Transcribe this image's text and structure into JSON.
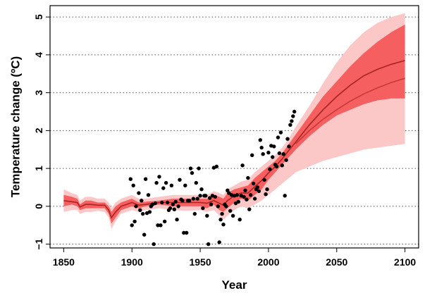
{
  "chart_data": {
    "type": "line",
    "title": "",
    "xlabel": "Year",
    "ylabel": "Temperature change (ºC)",
    "xlim": [
      1840,
      2110
    ],
    "ylim": [
      -1.1,
      5.3
    ],
    "x_ticks": [
      1850,
      1900,
      1950,
      2000,
      2050,
      2100
    ],
    "y_ticks": [
      -1,
      0,
      1,
      2,
      3,
      4,
      5
    ],
    "grid": "horizontal-dotted",
    "legend": "none",
    "colors": {
      "outer_band": "#fcc7c7",
      "inner_band": "#f55f5f",
      "line_upper": "#a82424",
      "line_lower": "#c83a3a",
      "points": "#000000"
    },
    "bands": {
      "x": [
        1850,
        1856,
        1860,
        1862,
        1866,
        1870,
        1875,
        1880,
        1883,
        1885,
        1888,
        1892,
        1896,
        1900,
        1905,
        1910,
        1920,
        1930,
        1940,
        1950,
        1955,
        1960,
        1964,
        1967,
        1970,
        1975,
        1980,
        1985,
        1990,
        1995,
        2000,
        2005,
        2010,
        2015,
        2020,
        2030,
        2040,
        2050,
        2060,
        2070,
        2080,
        2090,
        2100
      ],
      "outer_low": [
        -0.15,
        -0.1,
        -0.1,
        -0.2,
        -0.15,
        -0.15,
        -0.12,
        -0.15,
        -0.3,
        -0.6,
        -0.4,
        -0.2,
        -0.15,
        -0.1,
        -0.15,
        -0.1,
        -0.05,
        -0.1,
        -0.12,
        -0.1,
        -0.15,
        -0.1,
        -0.25,
        -0.35,
        -0.25,
        -0.1,
        0.0,
        -0.05,
        0.05,
        0.15,
        0.3,
        0.45,
        0.6,
        0.75,
        0.9,
        1.05,
        1.2,
        1.3,
        1.4,
        1.5,
        1.55,
        1.6,
        1.65
      ],
      "outer_high": [
        0.45,
        0.35,
        0.3,
        0.15,
        0.25,
        0.25,
        0.2,
        0.2,
        0.1,
        -0.05,
        0.1,
        0.2,
        0.25,
        0.3,
        0.2,
        0.2,
        0.25,
        0.3,
        0.3,
        0.3,
        0.3,
        0.4,
        0.35,
        0.3,
        0.45,
        0.55,
        0.65,
        0.7,
        0.9,
        1.05,
        1.2,
        1.35,
        1.55,
        1.8,
        2.1,
        2.65,
        3.25,
        3.8,
        4.25,
        4.6,
        4.85,
        5.0,
        5.1
      ],
      "inner_low": [
        0.0,
        0.05,
        0.0,
        -0.1,
        -0.05,
        -0.05,
        -0.05,
        -0.05,
        -0.2,
        -0.45,
        -0.3,
        -0.1,
        -0.05,
        0.0,
        -0.05,
        0.0,
        0.05,
        0.0,
        0.0,
        0.0,
        -0.05,
        0.05,
        -0.1,
        -0.15,
        -0.05,
        0.1,
        0.2,
        0.15,
        0.3,
        0.45,
        0.7,
        0.9,
        1.1,
        1.3,
        1.5,
        1.85,
        2.15,
        2.4,
        2.55,
        2.7,
        2.8,
        2.85,
        2.85
      ],
      "inner_high": [
        0.3,
        0.25,
        0.2,
        0.05,
        0.15,
        0.15,
        0.1,
        0.1,
        0.0,
        -0.15,
        0.0,
        0.1,
        0.15,
        0.2,
        0.1,
        0.12,
        0.15,
        0.2,
        0.2,
        0.2,
        0.2,
        0.3,
        0.25,
        0.2,
        0.35,
        0.45,
        0.5,
        0.55,
        0.75,
        0.9,
        1.05,
        1.2,
        1.4,
        1.65,
        1.9,
        2.4,
        2.9,
        3.3,
        3.7,
        4.05,
        4.35,
        4.6,
        4.8
      ]
    },
    "series": [
      {
        "x": [
          1850,
          1856,
          1860,
          1862,
          1866,
          1870,
          1875,
          1880,
          1883,
          1885,
          1888,
          1892,
          1896,
          1900,
          1905,
          1910,
          1920,
          1930,
          1940,
          1950,
          1955,
          1960,
          1964,
          1967,
          1970,
          1975,
          1980,
          1985,
          1990,
          1995,
          2000,
          2005,
          2010,
          2015,
          2020,
          2030,
          2040,
          2050,
          2060,
          2070,
          2080,
          2090,
          2100
        ],
        "y": [
          0.15,
          0.12,
          0.1,
          -0.02,
          0.05,
          0.05,
          0.03,
          0.03,
          -0.1,
          -0.3,
          -0.15,
          0.0,
          0.05,
          0.1,
          0.03,
          0.05,
          0.1,
          0.1,
          0.1,
          0.1,
          0.08,
          0.15,
          0.08,
          0.03,
          0.15,
          0.28,
          0.35,
          0.35,
          0.52,
          0.68,
          0.88,
          1.05,
          1.25,
          1.48,
          1.7,
          2.15,
          2.55,
          2.9,
          3.2,
          3.45,
          3.62,
          3.75,
          3.85
        ]
      },
      {
        "x": [
          2020,
          2030,
          2040,
          2050,
          2060,
          2070,
          2080,
          2090,
          2100
        ],
        "y": [
          1.65,
          2.0,
          2.3,
          2.55,
          2.78,
          2.97,
          3.13,
          3.27,
          3.38
        ]
      }
    ],
    "points": {
      "x": [
        1899,
        1900,
        1901,
        1902,
        1903,
        1905,
        1906,
        1907,
        1908,
        1909,
        1910,
        1911,
        1912,
        1913,
        1914,
        1915,
        1916,
        1917,
        1918,
        1919,
        1920,
        1921,
        1922,
        1923,
        1924,
        1925,
        1926,
        1927,
        1928,
        1929,
        1930,
        1931,
        1932,
        1933,
        1934,
        1935,
        1936,
        1937,
        1938,
        1939,
        1940,
        1941,
        1942,
        1943,
        1944,
        1945,
        1946,
        1947,
        1948,
        1949,
        1950,
        1951,
        1952,
        1953,
        1954,
        1955,
        1956,
        1957,
        1958,
        1959,
        1960,
        1961,
        1962,
        1963,
        1964,
        1965,
        1966,
        1967,
        1968,
        1969,
        1970,
        1971,
        1972,
        1973,
        1974,
        1975,
        1976,
        1977,
        1978,
        1979,
        1980,
        1981,
        1982,
        1983,
        1984,
        1985,
        1986,
        1987,
        1988,
        1989,
        1990,
        1991,
        1992,
        1993,
        1994,
        1995,
        1996,
        1997,
        1998,
        1999,
        2000,
        2001,
        2002,
        2003,
        2004,
        2005,
        2006,
        2007,
        2008,
        2009,
        2010,
        2011,
        2012,
        2013,
        2014,
        2015,
        2016,
        2017,
        2018,
        2019
      ],
      "y": [
        0.72,
        -0.5,
        0.55,
        -0.4,
        0.0,
        0.35,
        -0.1,
        0.15,
        -0.2,
        -0.75,
        0.72,
        -0.18,
        0.3,
        -0.15,
        0.0,
        0.05,
        -1.0,
        0.08,
        0.62,
        -0.5,
        0.78,
        -0.5,
        0.1,
        0.48,
        -0.4,
        0.62,
        0.1,
        -0.1,
        -0.05,
        0.55,
        0.05,
        -0.08,
        0.12,
        -0.35,
        0.0,
        0.7,
        0.18,
        0.15,
        -0.7,
        0.55,
        -0.7,
        0.15,
        0.15,
        1.0,
        0.88,
        0.2,
        -0.2,
        0.62,
        0.2,
        1.0,
        0.28,
        0.45,
        -0.05,
        0.28,
        0.28,
        -0.25,
        -1.0,
        0.22,
        0.05,
        0.28,
        1.02,
        0.25,
        1.05,
        0.0,
        -0.95,
        -0.35,
        -0.2,
        -0.48,
        0.05,
        0.0,
        0.42,
        0.35,
        -0.12,
        0.3,
        -0.25,
        0.28,
        0.08,
        0.3,
        0.12,
        -0.35,
        0.28,
        1.08,
        0.25,
        0.42,
        0.18,
        0.75,
        -0.08,
        0.3,
        1.35,
        0.6,
        0.2,
        0.45,
        0.5,
        0.4,
        1.75,
        1.55,
        1.38,
        0.7,
        0.32,
        0.45,
        1.42,
        0.98,
        1.6,
        1.3,
        1.58,
        1.1,
        1.05,
        1.82,
        1.4,
        1.95,
        1.08,
        1.38,
        0.28,
        1.22,
        1.78,
        1.58,
        2.15,
        2.25,
        2.38,
        2.5
      ]
    }
  }
}
